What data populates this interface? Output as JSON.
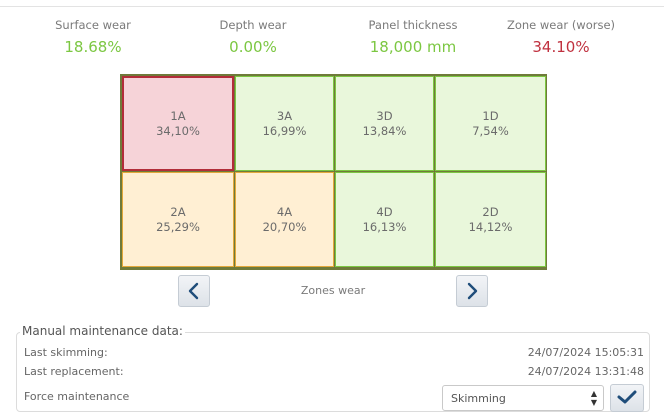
{
  "metrics": [
    {
      "label": "Surface wear",
      "value": "18.68%",
      "color": "#7cc742"
    },
    {
      "label": "Depth wear",
      "value": "0.00%",
      "color": "#7cc742"
    },
    {
      "label": "Panel thickness",
      "value": "18,000 mm",
      "color": "#7cc742"
    },
    {
      "label": "Zone wear (worse)",
      "value": "34.10%",
      "color": "#c0313f"
    }
  ],
  "zones": [
    {
      "id": "1A",
      "value": "34,10%",
      "status": "red"
    },
    {
      "id": "3A",
      "value": "16,99%",
      "status": "green"
    },
    {
      "id": "3D",
      "value": "13,84%",
      "status": "green"
    },
    {
      "id": "1D",
      "value": "7,54%",
      "status": "green"
    },
    {
      "id": "2A",
      "value": "25,29%",
      "status": "orange"
    },
    {
      "id": "4A",
      "value": "20,70%",
      "status": "orange"
    },
    {
      "id": "4D",
      "value": "16,13%",
      "status": "green"
    },
    {
      "id": "2D",
      "value": "14,12%",
      "status": "green"
    }
  ],
  "zones_label": "Zones wear",
  "nav_icons": {
    "prev": "chevron-left-icon",
    "next": "chevron-right-icon"
  },
  "maintenance": {
    "title": "Manual maintenance data:",
    "last_skimming_label": "Last skimming:",
    "last_skimming_value": "24/07/2024 15:05:31",
    "last_replacement_label": "Last replacement:",
    "last_replacement_value": "24/07/2024 13:31:48",
    "force_label": "Force maintenance",
    "force_select_value": "Skimming",
    "confirm_icon": "check-icon"
  }
}
